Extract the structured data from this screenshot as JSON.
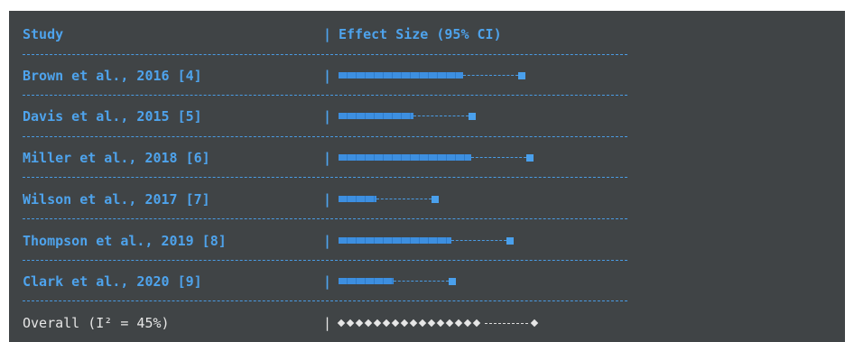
{
  "table": {
    "header": {
      "study": "Study",
      "separator": "|",
      "effect": "Effect Size (95% CI)"
    },
    "rows": [
      {
        "study": "Brown et al., 2016 [4]",
        "separator": "|",
        "bar_fraction": 0.43,
        "whisker_fraction": 0.19
      },
      {
        "study": "Davis et al., 2015 [5]",
        "separator": "|",
        "bar_fraction": 0.26,
        "whisker_fraction": 0.19
      },
      {
        "study": "Miller et al., 2018 [6]",
        "separator": "|",
        "bar_fraction": 0.46,
        "whisker_fraction": 0.19
      },
      {
        "study": "Wilson et al., 2017 [7]",
        "separator": "|",
        "bar_fraction": 0.13,
        "whisker_fraction": 0.19
      },
      {
        "study": "Thompson et al., 2019 [8]",
        "separator": "|",
        "bar_fraction": 0.39,
        "whisker_fraction": 0.19
      },
      {
        "study": "Clark et al., 2020 [9]",
        "separator": "|",
        "bar_fraction": 0.19,
        "whisker_fraction": 0.19
      }
    ],
    "overall": {
      "label": "Overall (I² = 45%)",
      "separator": "|",
      "diamond_count": 16
    }
  },
  "colors": {
    "background": "#404446",
    "accent": "#4ea3ec",
    "overall_text": "#e6e6e6"
  }
}
